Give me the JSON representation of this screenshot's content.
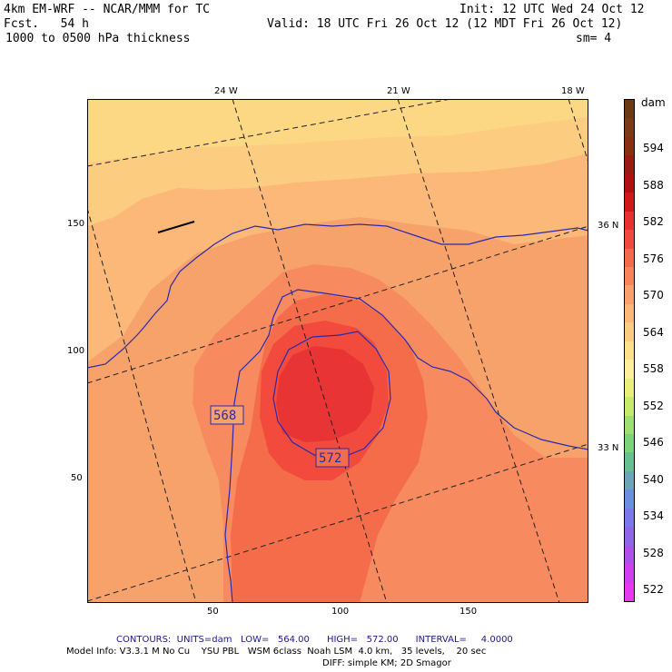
{
  "header": {
    "model": "4km EM-WRF -- NCAR/MMM for TC",
    "init": "Init: 12 UTC Wed 24 Oct 12",
    "fcst": "Fcst.   54 h",
    "valid": "Valid: 18 UTC Fri 26 Oct 12 (12 MDT Fri 26 Oct 12)",
    "field": "1000 to 0500 hPa thickness",
    "smoothing": "sm= 4"
  },
  "map": {
    "lon_labels": [
      "24 W",
      "21 W",
      "18 W"
    ],
    "lat_labels": [
      "36 N",
      "33 N"
    ],
    "x_ticks": [
      "50",
      "100",
      "150"
    ],
    "y_ticks": [
      "150",
      "100",
      "50"
    ],
    "contour_labels": [
      "568",
      "572"
    ]
  },
  "colorbar": {
    "unit": "dam",
    "labels": [
      "594",
      "588",
      "582",
      "576",
      "570",
      "564",
      "558",
      "552",
      "546",
      "540",
      "534",
      "528",
      "522"
    ],
    "colors": [
      "#6b3a12",
      "#7a3a14",
      "#8a2e10",
      "#9a1a10",
      "#b01010",
      "#d01818",
      "#e83030",
      "#f04a40",
      "#f46a4a",
      "#f8845a",
      "#faa06a",
      "#fbb878",
      "#fccc80",
      "#fde08a",
      "#fef09a",
      "#e8f07a",
      "#c6ea6a",
      "#9ee070",
      "#7ad47a",
      "#66c090",
      "#6aa6b8",
      "#6a8ee0",
      "#7a78ea",
      "#9066e8",
      "#b050ea",
      "#d040f0",
      "#e838f0"
    ]
  },
  "footer": {
    "contours": "CONTOURS:  UNITS=dam   LOW=   564.00      HIGH=   572.00      INTERVAL=     4.0000",
    "model_info": "Model Info: V3.3.1 M No Cu    YSU PBL   WSM 6class  Noah LSM  4.0 km,   35 levels,    20 sec",
    "diff": "DIFF: simple KM; 2D Smagor"
  }
}
